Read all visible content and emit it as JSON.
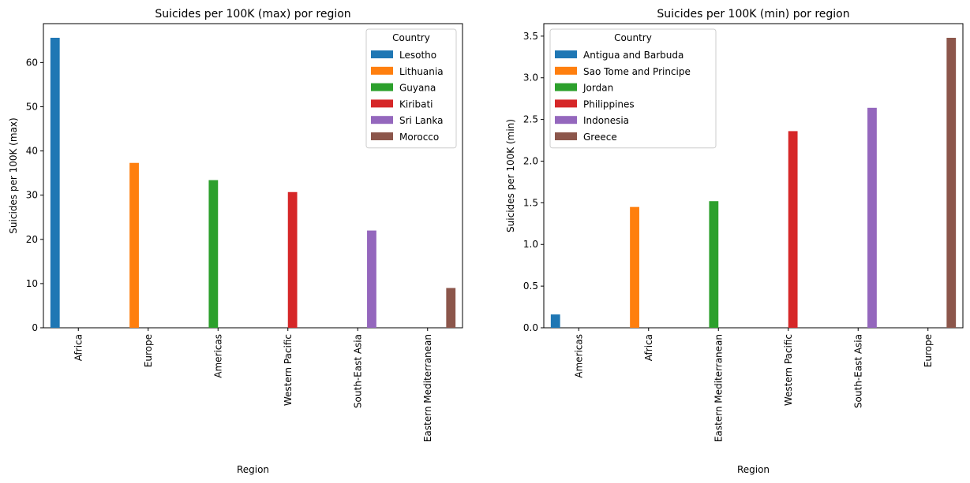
{
  "chart_data": [
    {
      "type": "bar",
      "title": "Suicides per 100K (max) por region",
      "xlabel": "Region",
      "ylabel": "Suicides per 100K (max)",
      "ylim": [
        0,
        68.8
      ],
      "yticks": [
        0,
        10,
        20,
        30,
        40,
        50,
        60
      ],
      "categories": [
        "Africa",
        "Europe",
        "Americas",
        "Western Pacific",
        "South-East Asia",
        "Eastern Mediterranean"
      ],
      "legend": {
        "title": "Country",
        "placement": "top-right"
      },
      "series": [
        {
          "name": "Lesotho",
          "color": "#1f77b4",
          "values": [
            65.6,
            null,
            null,
            null,
            null,
            null
          ]
        },
        {
          "name": "Lithuania",
          "color": "#ff7f0e",
          "values": [
            null,
            37.3,
            null,
            null,
            null,
            null
          ]
        },
        {
          "name": "Guyana",
          "color": "#2ca02c",
          "values": [
            null,
            null,
            33.4,
            null,
            null,
            null
          ]
        },
        {
          "name": "Kiribati",
          "color": "#d62728",
          "values": [
            null,
            null,
            null,
            30.7,
            null,
            null
          ]
        },
        {
          "name": "Sri Lanka",
          "color": "#9467bd",
          "values": [
            null,
            null,
            null,
            null,
            22.0,
            null
          ]
        },
        {
          "name": "Morocco",
          "color": "#8c564b",
          "values": [
            null,
            null,
            null,
            null,
            null,
            9.0
          ]
        }
      ]
    },
    {
      "type": "bar",
      "title": "Suicides per 100K (min) por region",
      "xlabel": "Region",
      "ylabel": "Suicides per 100K (min)",
      "ylim": [
        0,
        3.65
      ],
      "yticks": [
        0.0,
        0.5,
        1.0,
        1.5,
        2.0,
        2.5,
        3.0,
        3.5
      ],
      "categories": [
        "Americas",
        "Africa",
        "Eastern Mediterranean",
        "Western Pacific",
        "South-East Asia",
        "Europe"
      ],
      "legend": {
        "title": "Country",
        "placement": "top-left"
      },
      "series": [
        {
          "name": "Antigua and Barbuda",
          "color": "#1f77b4",
          "values": [
            0.16,
            null,
            null,
            null,
            null,
            null
          ]
        },
        {
          "name": "Sao Tome and Principe",
          "color": "#ff7f0e",
          "values": [
            null,
            1.45,
            null,
            null,
            null,
            null
          ]
        },
        {
          "name": "Jordan",
          "color": "#2ca02c",
          "values": [
            null,
            null,
            1.52,
            null,
            null,
            null
          ]
        },
        {
          "name": "Philippines",
          "color": "#d62728",
          "values": [
            null,
            null,
            null,
            2.36,
            null,
            null
          ]
        },
        {
          "name": "Indonesia",
          "color": "#9467bd",
          "values": [
            null,
            null,
            null,
            null,
            2.64,
            null
          ]
        },
        {
          "name": "Greece",
          "color": "#8c564b",
          "values": [
            null,
            null,
            null,
            null,
            null,
            3.48
          ]
        }
      ]
    }
  ]
}
